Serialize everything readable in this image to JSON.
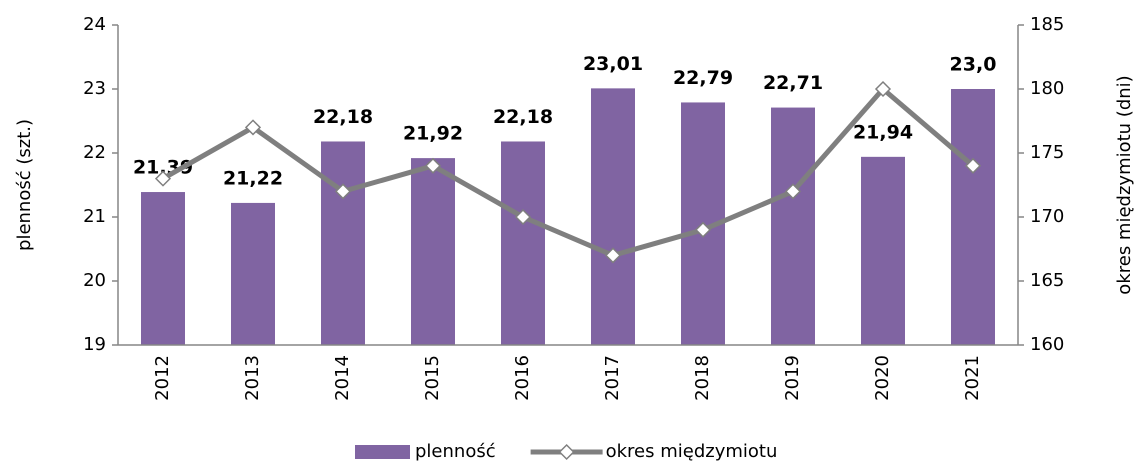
{
  "chart_data": {
    "type": "combo",
    "categories": [
      "2012",
      "2013",
      "2014",
      "2015",
      "2016",
      "2017",
      "2018",
      "2019",
      "2020",
      "2021"
    ],
    "series": [
      {
        "name": "plenność",
        "type": "bar",
        "color": "#8064a2",
        "values": [
          21.39,
          21.22,
          22.18,
          21.92,
          22.18,
          23.01,
          22.79,
          22.71,
          21.94,
          23.0
        ],
        "value_labels": [
          "21,39",
          "21,22",
          "22,18",
          "21,92",
          "22,18",
          "23,01",
          "22,79",
          "22,71",
          "21,94",
          "23,0"
        ]
      },
      {
        "name": "okres międzymiotu",
        "type": "line",
        "axis": "y2",
        "color": "#7f7f7f",
        "values": [
          173,
          177,
          172,
          174,
          170,
          167,
          169,
          172,
          180,
          174
        ]
      }
    ],
    "ylabel": "plenność (szt.)",
    "y2label": "okres międzymiotu (dni)",
    "ylim": [
      19,
      24
    ],
    "yticks": [
      19,
      20,
      21,
      22,
      23,
      24
    ],
    "y2lim": [
      160,
      185
    ],
    "y2ticks": [
      160,
      165,
      170,
      175,
      180,
      185
    ],
    "legend": "bottom"
  }
}
